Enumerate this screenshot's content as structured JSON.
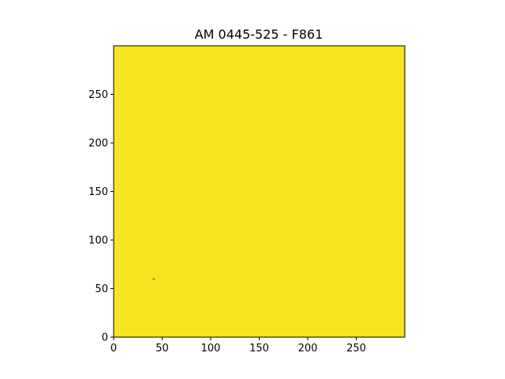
{
  "chart_data": {
    "type": "heatmap",
    "title": "AM 0445-525 - F861",
    "xlabel": "",
    "ylabel": "",
    "xlim": [
      0,
      300
    ],
    "ylim": [
      0,
      300
    ],
    "x_ticks": [
      0,
      50,
      100,
      150,
      200,
      250
    ],
    "y_ticks": [
      0,
      50,
      100,
      150,
      200,
      250
    ],
    "grid": false,
    "colormap": "viridis",
    "fill_color": "#f7e320",
    "features": [
      {
        "name": "dark-speck",
        "x": 41,
        "y": 60,
        "color": "#2a8c6a"
      }
    ]
  }
}
